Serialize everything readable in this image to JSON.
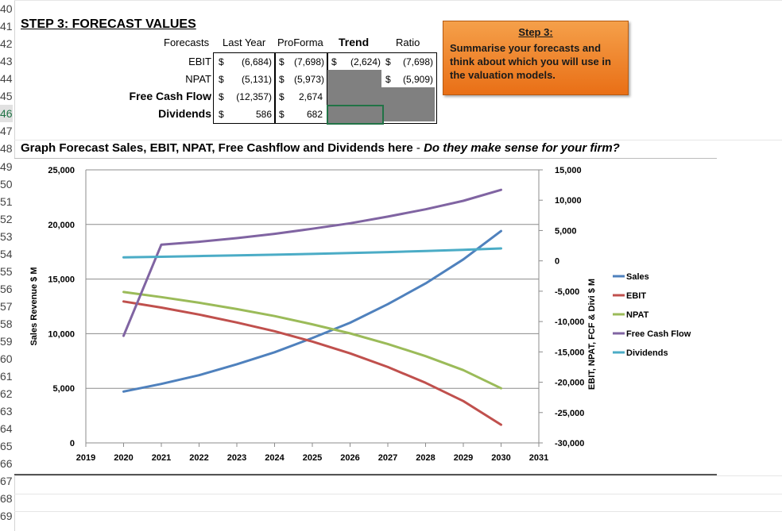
{
  "rows": [
    "40",
    "41",
    "42",
    "43",
    "44",
    "45",
    "46",
    "47",
    "48",
    "49",
    "50",
    "51",
    "52",
    "53",
    "54",
    "55",
    "56",
    "57",
    "58",
    "59",
    "60",
    "61",
    "62",
    "63",
    "64",
    "65",
    "66",
    "67",
    "68",
    "69"
  ],
  "title": "STEP 3: FORECAST VALUES",
  "table": {
    "headers": {
      "forecasts": "Forecasts",
      "last_year": "Last Year",
      "proforma": "ProForma",
      "trend": "Trend",
      "ratio": "Ratio"
    },
    "currency": "$",
    "ebit": {
      "label": "EBIT",
      "last_year": "(6,684)",
      "proforma": "(7,698)",
      "trend": "(2,624)",
      "ratio": "(7,698)"
    },
    "npat": {
      "label": "NPAT",
      "last_year": "(5,131)",
      "proforma": "(5,973)",
      "ratio": "(5,909)"
    },
    "fcf": {
      "label": "Free Cash Flow",
      "last_year": "(12,357)",
      "proforma": "2,674"
    },
    "div": {
      "label": "Dividends",
      "last_year": "586",
      "proforma": "682"
    }
  },
  "note": {
    "title": "Step 3:",
    "body": "Summarise your forecasts and think about which you will use in the valuation models.",
    "color": "#f08a2c"
  },
  "graph_title": {
    "main": "Graph Forecast Sales, EBIT, NPAT, Free Cashflow and Dividends here",
    "sep": " - ",
    "question": "Do they make sense for your firm?"
  },
  "chart_data": {
    "type": "line",
    "x": [
      2020,
      2021,
      2022,
      2023,
      2024,
      2025,
      2026,
      2027,
      2028,
      2029,
      2030
    ],
    "xlabel_ticks": [
      "2019",
      "2020",
      "2021",
      "2022",
      "2023",
      "2024",
      "2025",
      "2026",
      "2027",
      "2028",
      "2029",
      "2030",
      "2031"
    ],
    "xlim": [
      2019,
      2031
    ],
    "y_left": {
      "label": "Sales Revenue $ M",
      "lim": [
        0,
        25000
      ],
      "ticks": [
        "0",
        "5,000",
        "10,000",
        "15,000",
        "20,000",
        "25,000"
      ]
    },
    "y_right": {
      "label": "EBIT, NPAT, FCF & Divi $ M",
      "lim": [
        -30000,
        15000
      ],
      "ticks": [
        "-30,000",
        "-25,000",
        "-20,000",
        "-15,000",
        "-10,000",
        "-5,000",
        "0",
        "5,000",
        "10,000",
        "15,000"
      ]
    },
    "series": [
      {
        "name": "Sales",
        "axis": "left",
        "color": "#4f81bd",
        "values": [
          4700,
          5400,
          6200,
          7200,
          8300,
          9600,
          11000,
          12700,
          14600,
          16800,
          19400
        ]
      },
      {
        "name": "EBIT",
        "axis": "right",
        "color": "#c0504d",
        "values": [
          -6684,
          -7698,
          -8850,
          -10150,
          -11600,
          -13300,
          -15250,
          -17500,
          -20100,
          -23100,
          -27000
        ]
      },
      {
        "name": "NPAT",
        "axis": "right",
        "color": "#9bbb59",
        "values": [
          -5131,
          -5973,
          -6900,
          -7950,
          -9100,
          -10450,
          -11950,
          -13700,
          -15700,
          -18000,
          -21000
        ]
      },
      {
        "name": "Free Cash Flow",
        "axis": "right",
        "color": "#8064a2",
        "values": [
          -12357,
          2674,
          3150,
          3750,
          4450,
          5300,
          6200,
          7300,
          8500,
          9900,
          11700
        ]
      },
      {
        "name": "Dividends",
        "axis": "right",
        "color": "#4bacc6",
        "values": [
          586,
          682,
          790,
          900,
          1020,
          1150,
          1290,
          1450,
          1630,
          1830,
          2050
        ]
      }
    ],
    "legend": "right"
  }
}
